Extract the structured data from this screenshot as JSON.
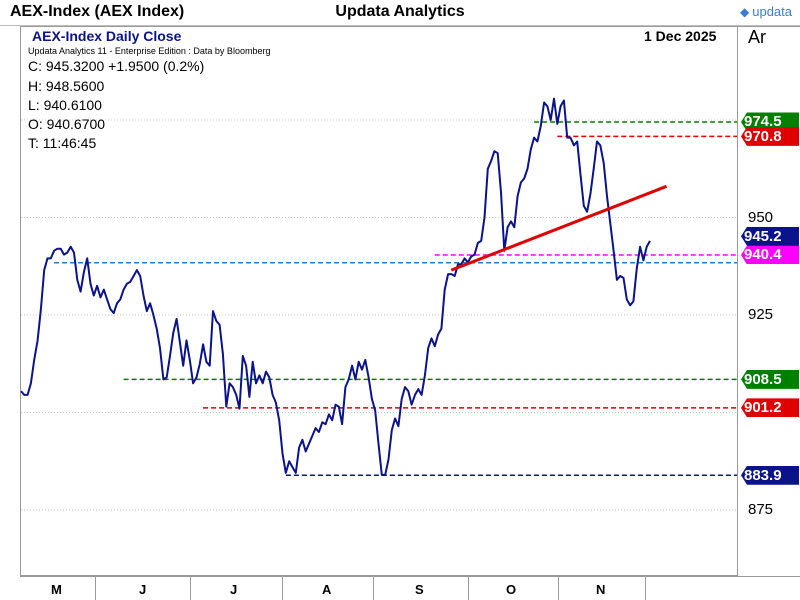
{
  "header": {
    "app_title": "AEX-Index (AEX Index)",
    "center_title": "Updata Analytics",
    "logo_text": "updata"
  },
  "chart_info": {
    "title": "AEX-Index Daily Close",
    "date": "1 Dec 2025",
    "subtitle": "Updata Analytics 11 - Enterprise Edition : Data by Bloomberg",
    "axis_header": "Ar",
    "close": "C: 945.3200  +1.9500 (0.2%)",
    "high": "H: 948.5600",
    "low": "L: 940.6100",
    "open": "O: 940.6700",
    "time": "T: 11:46:45"
  },
  "chart_data": {
    "type": "line",
    "title": "AEX-Index Daily Close",
    "xlabel": "",
    "ylabel": "",
    "ylim": [
      862.5,
      1002.5
    ],
    "x_ticks": [
      "M",
      "J",
      "J",
      "A",
      "S",
      "O",
      "N"
    ],
    "y_ticks": [
      875,
      925,
      950
    ],
    "series": [
      {
        "name": "AEX-Index Daily Close",
        "color": "#0b138a",
        "values": [
          905.5,
          904.5,
          904.5,
          907.5,
          913.5,
          918.5,
          926.5,
          936.5,
          939.5,
          939.5,
          941.5,
          942.0,
          942.0,
          940.5,
          941.0,
          942.5,
          941.0,
          934.0,
          931.0,
          936.0,
          939.5,
          933.0,
          930.0,
          932.5,
          929.5,
          931.5,
          929.0,
          926.5,
          925.5,
          928.0,
          929.0,
          931.5,
          933.0,
          933.5,
          935.0,
          936.5,
          935.0,
          930.0,
          926.0,
          928.0,
          925.0,
          921.5,
          916.5,
          908.5,
          909.0,
          914.5,
          920.5,
          924.0,
          918.0,
          912.0,
          918.5,
          913.5,
          907.5,
          909.0,
          912.5,
          917.5,
          913.0,
          912.0,
          926.0,
          923.5,
          922.5,
          915.0,
          901.5,
          907.5,
          906.5,
          904.5,
          901.0,
          914.5,
          912.0,
          904.0,
          913.0,
          907.5,
          909.5,
          907.5,
          910.5,
          909.0,
          904.5,
          902.5,
          898.0,
          889.5,
          884.5,
          887.5,
          886.0,
          884.5,
          891.0,
          893.0,
          890.0,
          892.0,
          894.0,
          896.0,
          895.0,
          897.5,
          897.0,
          899.5,
          898.0,
          902.0,
          901.5,
          897.0,
          906.5,
          908.5,
          912.0,
          908.5,
          913.0,
          911.0,
          913.5,
          909.0,
          903.5,
          900.5,
          892.0,
          884.0,
          884.0,
          888.0,
          895.5,
          898.5,
          896.5,
          903.5,
          906.5,
          905.5,
          902.0,
          904.5,
          906.0,
          904.5,
          909.5,
          916.5,
          919.0,
          917.0,
          920.0,
          921.5,
          931.5,
          935.5,
          935.5,
          935.0,
          938.0,
          938.0,
          939.5,
          938.5,
          940.0,
          940.5,
          943.5,
          944.0,
          950.0,
          962.5,
          964.5,
          967.0,
          966.5,
          956.5,
          941.5,
          947.5,
          949.0,
          947.5,
          955.5,
          959.0,
          960.0,
          962.5,
          967.5,
          970.5,
          969.5,
          973.5,
          979.5,
          978.5,
          975.0,
          980.5,
          974.0,
          978.5,
          980.0,
          970.5,
          970.5,
          968.5,
          969.5,
          961.0,
          953.0,
          951.5,
          956.0,
          962.5,
          969.5,
          968.5,
          964.0,
          955.5,
          948.5,
          941.5,
          934.0,
          935.0,
          934.5,
          929.0,
          927.5,
          928.5,
          937.0,
          942.5,
          939.0,
          942.5,
          944.0
        ]
      }
    ],
    "levels": [
      {
        "name": "resistance-974",
        "value": 974.5,
        "label": "974.5",
        "color": "#008000",
        "style": "dashed",
        "x_start_index": 155
      },
      {
        "name": "resistance-970",
        "value": 970.8,
        "label": "970.8",
        "color": "#e00000",
        "style": "dashed",
        "x_start_index": 162
      },
      {
        "name": "pink-940",
        "value": 940.4,
        "label": "940.4",
        "color": "#ff00ff",
        "style": "dashed",
        "x_start_index": 125
      },
      {
        "name": "blue-938",
        "value": 938.4,
        "label": "",
        "color": "#1e7fd0",
        "style": "dashed",
        "x_start_index": 10
      },
      {
        "name": "support-908",
        "value": 908.5,
        "label": "908.5",
        "color": "#008000",
        "style": "dashed",
        "x_start_index": 31
      },
      {
        "name": "support-901",
        "value": 901.2,
        "label": "901.2",
        "color": "#e00000",
        "style": "dashed",
        "x_start_index": 55
      },
      {
        "name": "low-883",
        "value": 883.9,
        "label": "883.9",
        "color": "#0b138a",
        "style": "dashed",
        "x_start_index": 80
      }
    ],
    "current": {
      "value": 945.2,
      "label": "945.2",
      "color": "#0b138a"
    },
    "trendline": {
      "color": "#e00000",
      "start": {
        "index": 130,
        "value": 936.5
      },
      "end": {
        "index": 195,
        "value": 958.0
      }
    }
  }
}
